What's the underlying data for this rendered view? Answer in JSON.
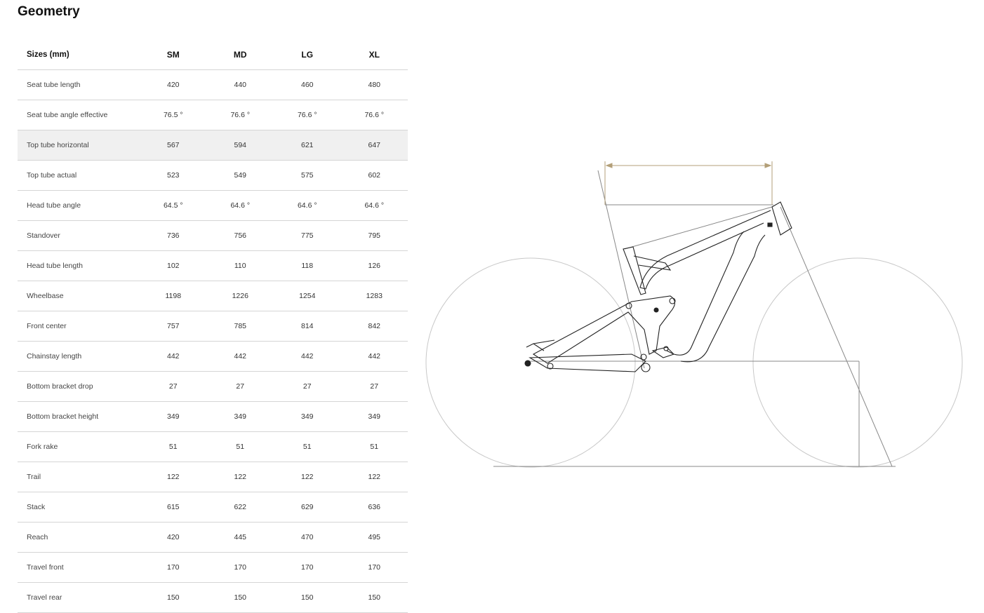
{
  "title": "Geometry",
  "table": {
    "headers": [
      "Sizes (mm)",
      "SM",
      "MD",
      "LG",
      "XL"
    ],
    "highlighted_row": "Top tube horizontal",
    "rows": [
      [
        "Seat tube length",
        "420",
        "440",
        "460",
        "480"
      ],
      [
        "Seat tube angle effective",
        "76.5 °",
        "76.6 °",
        "76.6 °",
        "76.6 °"
      ],
      [
        "Top tube horizontal",
        "567",
        "594",
        "621",
        "647"
      ],
      [
        "Top tube actual",
        "523",
        "549",
        "575",
        "602"
      ],
      [
        "Head tube angle",
        "64.5 °",
        "64.6 °",
        "64.6 °",
        "64.6 °"
      ],
      [
        "Standover",
        "736",
        "756",
        "775",
        "795"
      ],
      [
        "Head tube length",
        "102",
        "110",
        "118",
        "126"
      ],
      [
        "Wheelbase",
        "1198",
        "1226",
        "1254",
        "1283"
      ],
      [
        "Front center",
        "757",
        "785",
        "814",
        "842"
      ],
      [
        "Chainstay length",
        "442",
        "442",
        "442",
        "442"
      ],
      [
        "Bottom bracket drop",
        "27",
        "27",
        "27",
        "27"
      ],
      [
        "Bottom bracket height",
        "349",
        "349",
        "349",
        "349"
      ],
      [
        "Fork rake",
        "51",
        "51",
        "51",
        "51"
      ],
      [
        "Trail",
        "122",
        "122",
        "122",
        "122"
      ],
      [
        "Stack",
        "615",
        "622",
        "629",
        "636"
      ],
      [
        "Reach",
        "420",
        "445",
        "470",
        "495"
      ],
      [
        "Travel front",
        "170",
        "170",
        "170",
        "170"
      ],
      [
        "Travel rear",
        "150",
        "150",
        "150",
        "150"
      ]
    ]
  },
  "colors": {
    "highlight_dimension": "#b39f78",
    "lines": "#888888",
    "frame": "#222222"
  }
}
